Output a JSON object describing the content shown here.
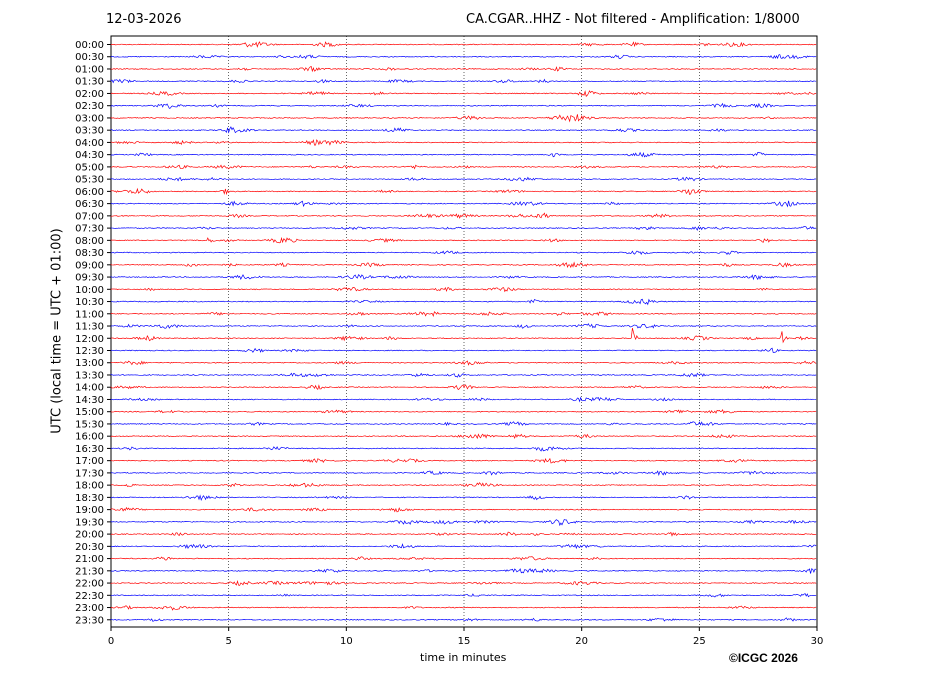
{
  "header": {
    "date": "12-03-2026",
    "title": "CA.CGAR..HHZ - Not filtered - Amplification: 1/8000"
  },
  "footer": {
    "copyright": "©ICGC 2026"
  },
  "chart_data": {
    "type": "line",
    "title": "CA.CGAR..HHZ - Not filtered - Amplification: 1/8000",
    "xlabel": "time in minutes",
    "ylabel": "UTC (local time = UTC + 01:00)",
    "xlim": [
      0,
      30
    ],
    "x_ticks": [
      "0",
      "5",
      "10",
      "15",
      "20",
      "25",
      "30"
    ],
    "grid": "vertical dotted lines every 5 minutes",
    "rows": [
      "00:00",
      "00:30",
      "01:00",
      "01:30",
      "02:00",
      "02:30",
      "03:00",
      "03:30",
      "04:00",
      "04:30",
      "05:00",
      "05:30",
      "06:00",
      "06:30",
      "07:00",
      "07:30",
      "08:00",
      "08:30",
      "09:00",
      "09:30",
      "10:00",
      "10:30",
      "11:00",
      "11:30",
      "12:00",
      "12:30",
      "13:00",
      "13:30",
      "14:00",
      "14:30",
      "15:00",
      "15:30",
      "16:00",
      "16:30",
      "17:00",
      "17:30",
      "18:00",
      "18:30",
      "19:00",
      "19:30",
      "20:00",
      "20:30",
      "21:00",
      "21:30",
      "22:00",
      "22:30",
      "23:00",
      "23:30"
    ],
    "trace_colors": [
      "#ff0000",
      "#0000ff"
    ],
    "events": [
      {
        "row": "12:00",
        "minute": 22.2
      },
      {
        "row": "12:00",
        "minute": 28.5
      }
    ]
  }
}
